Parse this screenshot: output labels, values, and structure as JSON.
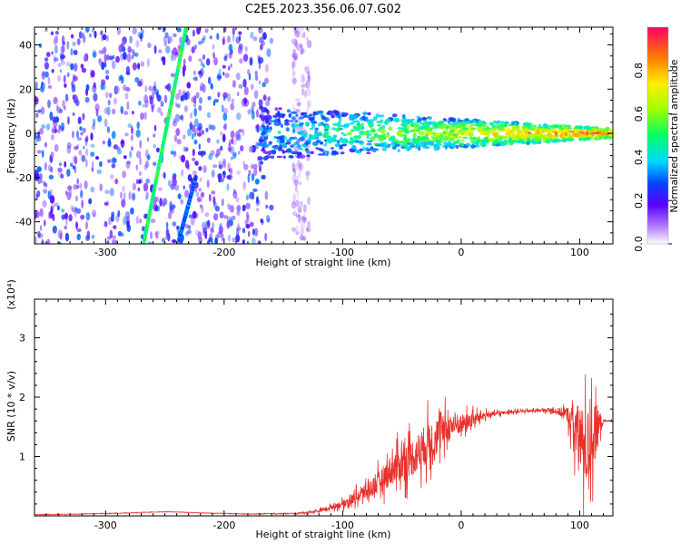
{
  "title": "C2E5.2023.356.06.07.G02",
  "chart_data": [
    {
      "type": "heatmap",
      "xlabel": "Height of straight line (km)",
      "ylabel": "Frequency (Hz)",
      "xlim": [
        -360,
        128
      ],
      "ylim": [
        -50,
        48
      ],
      "xticks": [
        -300,
        -200,
        -100,
        0,
        100
      ],
      "xtick_labels": [
        "-300",
        "-200",
        "-100",
        "0",
        "100"
      ],
      "yticks": [
        -40,
        -20,
        0,
        20,
        40
      ],
      "ytick_labels": [
        "-40",
        "-20",
        "0",
        "20",
        "40"
      ],
      "features": [
        {
          "name": "background-speckle",
          "x_range": [
            -360,
            -160
          ],
          "y_range": [
            -50,
            48
          ],
          "amplitude": 0.25
        },
        {
          "name": "diagonal-line-1",
          "from": [
            -268,
            -50
          ],
          "to": [
            -232,
            48
          ],
          "amplitude": 0.5
        },
        {
          "name": "diagonal-line-2",
          "from": [
            -238,
            -48
          ],
          "to": [
            -224,
            -20
          ],
          "amplitude": 0.3
        },
        {
          "name": "faint-band",
          "x_range": [
            -142,
            -128
          ],
          "y_range": [
            -50,
            48
          ],
          "amplitude": 0.1
        },
        {
          "name": "horizontal-band",
          "x_range": [
            -170,
            128
          ],
          "center_y": 0,
          "width_start": 24,
          "width_end": 4,
          "amplitude_start": 0.35,
          "amplitude_end": 0.95
        }
      ],
      "colorbar": {
        "label": "Normalized spectral amplitude",
        "range": [
          0,
          1
        ],
        "ticks": [
          0.0,
          0.2,
          0.4,
          0.6,
          0.8
        ],
        "tick_labels": [
          "0.0",
          "0.2",
          "0.4",
          "0.6",
          "0.8"
        ]
      },
      "grid": false
    },
    {
      "type": "line",
      "xlabel": "Height of straight line (km)",
      "ylabel": "SNR (10 * v/v)",
      "yscale_label": "(x10⁴)",
      "xlim": [
        -360,
        128
      ],
      "ylim": [
        0,
        3.65
      ],
      "xticks": [
        -300,
        -200,
        -100,
        0,
        100
      ],
      "xtick_labels": [
        "-300",
        "-200",
        "-100",
        "0",
        "100"
      ],
      "yticks": [
        1,
        2,
        3
      ],
      "ytick_labels": [
        "1",
        "2",
        "3"
      ],
      "color": "#e8302c",
      "series": [
        {
          "x": [
            -360,
            -320,
            -280,
            -250,
            -220,
            -180,
            -140,
            -120,
            -110,
            -100,
            -90,
            -80,
            -70,
            -60,
            -50,
            -40,
            -30,
            -20,
            -10,
            0,
            10,
            20,
            30,
            40,
            50,
            60,
            70,
            80,
            90,
            95,
            100,
            105,
            110,
            115,
            120,
            128
          ],
          "y": [
            0.02,
            0.03,
            0.05,
            0.07,
            0.05,
            0.03,
            0.04,
            0.08,
            0.15,
            0.2,
            0.3,
            0.42,
            0.55,
            0.75,
            0.9,
            1.0,
            1.2,
            1.35,
            1.5,
            1.55,
            1.62,
            1.7,
            1.72,
            1.75,
            1.76,
            1.77,
            1.78,
            1.77,
            1.7,
            1.5,
            1.3,
            1.1,
            1.3,
            1.5,
            1.6,
            1.6
          ],
          "noise": [
            0.01,
            0.01,
            0.01,
            0.01,
            0.01,
            0.01,
            0.02,
            0.05,
            0.08,
            0.12,
            0.2,
            0.3,
            0.4,
            0.55,
            0.65,
            0.7,
            0.75,
            0.7,
            0.5,
            0.35,
            0.25,
            0.12,
            0.08,
            0.05,
            0.05,
            0.05,
            0.06,
            0.1,
            0.3,
            0.8,
            1.3,
            1.4,
            1.3,
            0.8,
            0.05,
            0.03
          ]
        }
      ],
      "grid": false
    }
  ]
}
